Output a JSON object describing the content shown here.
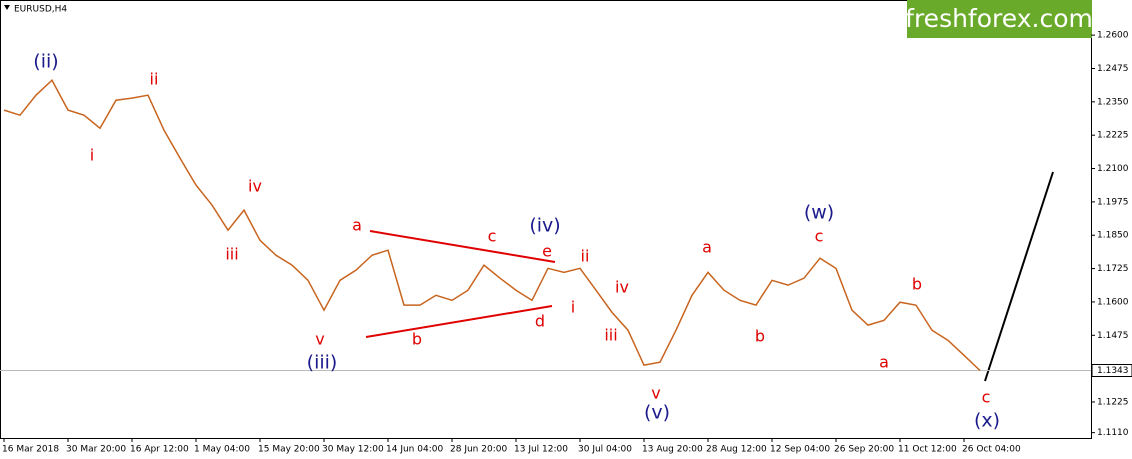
{
  "chart_data": {
    "type": "line",
    "symbol": "EURUSD,H4",
    "logo": "freshforex.com",
    "categories": [
      "16 Mar 2018",
      null,
      null,
      null,
      "30 Mar 20:00",
      null,
      null,
      null,
      "16 Apr 12:00",
      null,
      null,
      null,
      "1 May 04:00",
      null,
      null,
      null,
      "15 May 20:00",
      null,
      null,
      null,
      "30 May 12:00",
      null,
      null,
      null,
      "14 Jun 04:00",
      null,
      null,
      null,
      "28 Jun 20:00",
      null,
      null,
      null,
      "13 Jul 12:00",
      null,
      null,
      null,
      "30 Jul 04:00",
      null,
      null,
      null,
      "13 Aug 20:00",
      null,
      null,
      null,
      "28 Aug 12:00",
      null,
      null,
      null,
      "12 Sep 04:00",
      null,
      null,
      null,
      "26 Sep 20:00",
      null,
      null,
      null,
      "11 Oct 12:00",
      null,
      null,
      null,
      "26 Oct 04:00",
      null
    ],
    "values": [
      1.2319,
      1.23,
      1.2375,
      1.2431,
      1.2319,
      1.23,
      1.2251,
      1.2356,
      1.2364,
      1.2375,
      1.2244,
      1.2139,
      1.2038,
      1.1963,
      1.1869,
      1.1944,
      1.1831,
      1.1775,
      1.1738,
      1.1681,
      1.1569,
      1.1681,
      1.1719,
      1.1775,
      1.1794,
      1.1588,
      1.1588,
      1.1625,
      1.1606,
      1.1644,
      1.1738,
      1.1689,
      1.1644,
      1.1606,
      1.1726,
      1.1711,
      1.1726,
      1.1644,
      1.1561,
      1.1494,
      1.1363,
      1.1374,
      1.1494,
      1.1625,
      1.1711,
      1.1644,
      1.1606,
      1.1588,
      1.1681,
      1.1663,
      1.1689,
      1.1764,
      1.1726,
      1.1569,
      1.1513,
      1.1531,
      1.1599,
      1.1588,
      1.1494,
      1.1456,
      1.14,
      1.1343
    ],
    "color": "#c8641e",
    "last_price": 1.1343,
    "ylim": [
      1.109,
      1.2713
    ],
    "yticks": [
      {
        "value": 1.26,
        "label": "1.2600"
      },
      {
        "value": 1.2475,
        "label": "1.2475"
      },
      {
        "value": 1.235,
        "label": "1.2350"
      },
      {
        "value": 1.2225,
        "label": "1.2225"
      },
      {
        "value": 1.21,
        "label": "1.2100"
      },
      {
        "value": 1.1975,
        "label": "1.1975"
      },
      {
        "value": 1.185,
        "label": "1.1850"
      },
      {
        "value": 1.1725,
        "label": "1.1725"
      },
      {
        "value": 1.16,
        "label": "1.1600"
      },
      {
        "value": 1.1475,
        "label": "1.1475"
      },
      {
        "value": 1.1225,
        "label": "1.1225"
      },
      {
        "value": 1.111,
        "label": "1.1110"
      }
    ],
    "annotations": [
      {
        "text": "(ii)",
        "color": "#1a1a8c"
      },
      {
        "text": "ii",
        "color": "#e00000"
      },
      {
        "text": "i",
        "color": "#e00000"
      },
      {
        "text": "iv",
        "color": "#e00000"
      },
      {
        "text": "iii",
        "color": "#e00000"
      },
      {
        "text": "v",
        "color": "#e00000"
      },
      {
        "text": "(iii)",
        "color": "#1a1a8c"
      },
      {
        "text": "a",
        "color": "#e00000"
      },
      {
        "text": "b",
        "color": "#e00000"
      },
      {
        "text": "c",
        "color": "#e00000"
      },
      {
        "text": "(iv)",
        "color": "#1a1a8c"
      },
      {
        "text": "e",
        "color": "#e00000"
      },
      {
        "text": "d",
        "color": "#e00000"
      },
      {
        "text": "ii",
        "color": "#e00000"
      },
      {
        "text": "i",
        "color": "#e00000"
      },
      {
        "text": "iv",
        "color": "#e00000"
      },
      {
        "text": "iii",
        "color": "#e00000"
      },
      {
        "text": "v",
        "color": "#e00000"
      },
      {
        "text": "(v)",
        "color": "#1a1a8c"
      },
      {
        "text": "a",
        "color": "#e00000"
      },
      {
        "text": "b",
        "color": "#e00000"
      },
      {
        "text": "(w)",
        "color": "#1a1a8c"
      },
      {
        "text": "c",
        "color": "#e00000"
      },
      {
        "text": "b",
        "color": "#e00000"
      },
      {
        "text": "a",
        "color": "#e00000"
      },
      {
        "text": "c",
        "color": "#e00000"
      },
      {
        "text": "(x)",
        "color": "#1a1a8c"
      }
    ]
  }
}
